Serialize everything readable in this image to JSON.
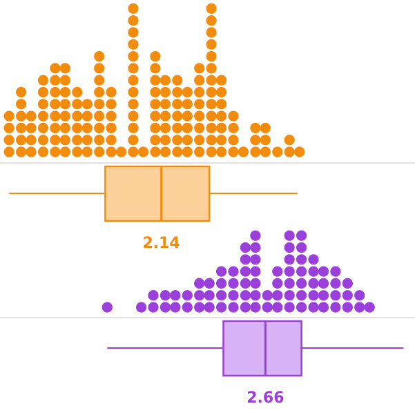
{
  "chart_data": [
    {
      "type": "dot+box",
      "color": "#F28C0F",
      "box_fill": "#FCD199",
      "median_label": "2.14",
      "box": {
        "whisker_low": 1.38,
        "q1": 1.86,
        "median": 2.14,
        "q3": 2.38,
        "whisker_high": 2.82
      },
      "dots": {
        "x_bins": [
          1.38,
          1.44,
          1.49,
          1.55,
          1.61,
          1.66,
          1.72,
          1.77,
          1.83,
          1.89,
          1.94,
          2.0,
          2.05,
          2.11,
          2.16,
          2.22,
          2.27,
          2.33,
          2.39,
          2.44,
          2.5,
          2.55,
          2.61,
          2.66,
          2.72,
          2.78,
          2.83
        ],
        "counts": [
          4,
          6,
          4,
          7,
          8,
          8,
          6,
          5,
          9,
          6,
          1,
          13,
          1,
          9,
          7,
          7,
          6,
          8,
          13,
          7,
          4,
          1,
          3,
          3,
          1,
          2,
          1
        ]
      }
    },
    {
      "type": "dot+box",
      "color": "#9B3FDB",
      "box_fill": "#D7B2F6",
      "median_label": "2.66",
      "box": {
        "whisker_low": 1.87,
        "q1": 2.45,
        "median": 2.66,
        "q3": 2.84,
        "whisker_high": 3.35
      },
      "dots": {
        "x_bins": [
          1.87,
          2.04,
          2.1,
          2.16,
          2.21,
          2.27,
          2.33,
          2.38,
          2.44,
          2.5,
          2.56,
          2.61,
          2.67,
          2.72,
          2.78,
          2.84,
          2.9,
          2.95,
          3.01,
          3.07,
          3.13,
          3.18
        ],
        "counts": [
          1,
          1,
          2,
          2,
          2,
          2,
          3,
          3,
          4,
          4,
          6,
          7,
          2,
          4,
          7,
          7,
          5,
          4,
          4,
          3,
          2,
          1
        ]
      }
    }
  ]
}
